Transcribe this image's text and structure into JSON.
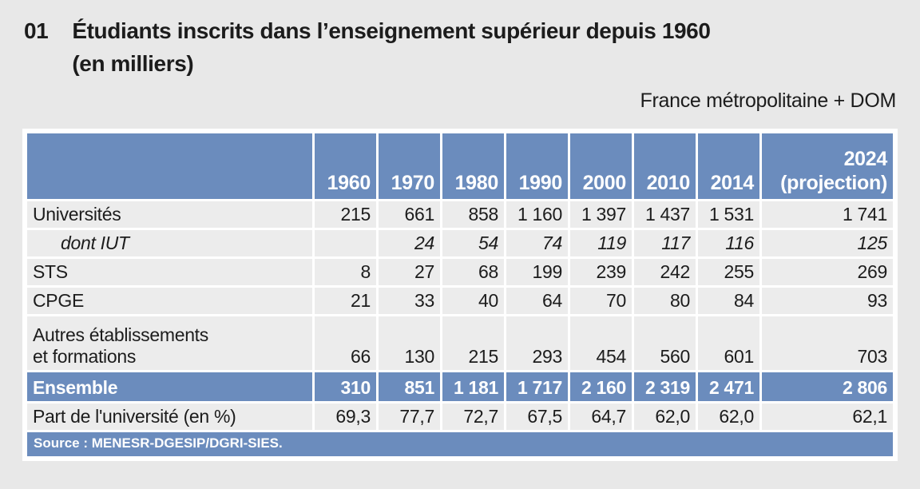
{
  "page": {
    "figure_number": "01",
    "title": "Étudiants inscrits dans l’enseignement supérieur depuis 1960",
    "title_line2": "(en milliers)",
    "scope_note": "France métropolitaine + DOM"
  },
  "colors": {
    "accent_blue": "#6b8cbd",
    "cell_bg": "#ececec",
    "page_bg": "#e8e8e8",
    "header_text": "#ffffff",
    "body_text": "#1c1c1c"
  },
  "chart_data": {
    "type": "table",
    "title": "Étudiants inscrits dans l’enseignement supérieur depuis 1960 (en milliers)",
    "columns": [
      "",
      "1960",
      "1970",
      "1980",
      "1990",
      "2000",
      "2010",
      "2014",
      "2024\n(projection)"
    ],
    "rows": [
      {
        "label": "Universités",
        "style": "normal",
        "values": [
          "215",
          "661",
          "858",
          "1 160",
          "1 397",
          "1 437",
          "1 531",
          "1 741"
        ]
      },
      {
        "label": "dont IUT",
        "style": "italic",
        "values": [
          "",
          "24",
          "54",
          "74",
          "119",
          "117",
          "116",
          "125"
        ]
      },
      {
        "label": "STS",
        "style": "normal",
        "values": [
          "8",
          "27",
          "68",
          "199",
          "239",
          "242",
          "255",
          "269"
        ]
      },
      {
        "label": "CPGE",
        "style": "normal",
        "values": [
          "21",
          "33",
          "40",
          "64",
          "70",
          "80",
          "84",
          "93"
        ]
      },
      {
        "label": "Autres établissements\net formations",
        "style": "twoline",
        "values": [
          "66",
          "130",
          "215",
          "293",
          "454",
          "560",
          "601",
          "703"
        ]
      },
      {
        "label": "Ensemble",
        "style": "total",
        "values": [
          "310",
          "851",
          "1 181",
          "1 717",
          "2 160",
          "2 319",
          "2 471",
          "2 806"
        ]
      },
      {
        "label": "Part de l'université (en %)",
        "style": "normal",
        "values": [
          "69,3",
          "77,7",
          "72,7",
          "67,5",
          "64,7",
          "62,0",
          "62,0",
          "62,1"
        ]
      }
    ],
    "source": "Source : MENESR-DGESIP/DGRI-SIES."
  }
}
